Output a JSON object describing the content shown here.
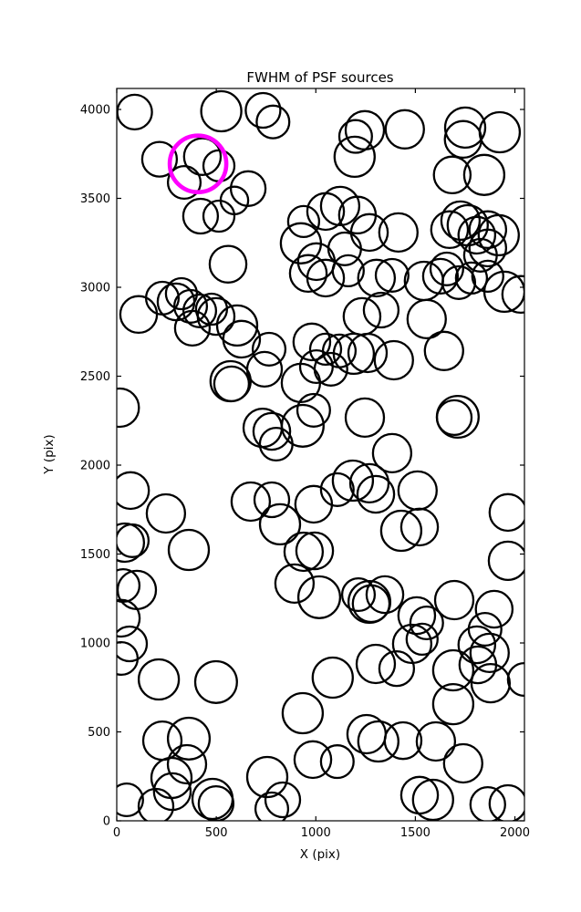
{
  "figure": {
    "background": "#ffffff",
    "title": "FWHM of PSF sources",
    "xlabel": "X (pix)",
    "ylabel": "Y (pix)"
  },
  "colors": {
    "circle_edge": "#000000",
    "highlight_edge": "#ff00ff",
    "axis": "#000000",
    "background": "#ffffff"
  },
  "chart_data": {
    "type": "scatter",
    "title": "FWHM of PSF sources",
    "xlabel": "X (pix)",
    "ylabel": "Y (pix)",
    "xlim": [
      0,
      2048
    ],
    "ylim": [
      0,
      4118
    ],
    "xticks": [
      0,
      500,
      1000,
      1500,
      2000
    ],
    "yticks": [
      0,
      500,
      1000,
      1500,
      2000,
      2500,
      3000,
      3500,
      4000
    ],
    "grid": false,
    "legend": null,
    "marker": "open-circle",
    "note": "each circle marks a PSF source; radius proportional to FWHM; one magenta highlighted source",
    "highlight_circle": {
      "x": 408,
      "y": 3694,
      "r": 142,
      "color": "#ff00ff"
    },
    "circles": [
      [
        90,
        3985,
        87
      ],
      [
        525,
        3990,
        101
      ],
      [
        735,
        3995,
        87
      ],
      [
        785,
        3930,
        82
      ],
      [
        430,
        3735,
        92
      ],
      [
        215,
        3720,
        87
      ],
      [
        513,
        3683,
        78
      ],
      [
        339,
        3590,
        82
      ],
      [
        421,
        3400,
        87
      ],
      [
        513,
        3400,
        78
      ],
      [
        591,
        3488,
        69
      ],
      [
        660,
        3555,
        87
      ],
      [
        559,
        3130,
        92
      ],
      [
        939,
        3370,
        78
      ],
      [
        1049,
        3426,
        92
      ],
      [
        1122,
        3457,
        96
      ],
      [
        925,
        3247,
        101
      ],
      [
        1003,
        3144,
        92
      ],
      [
        962,
        3078,
        92
      ],
      [
        1049,
        3052,
        92
      ],
      [
        1145,
        3216,
        82
      ],
      [
        1163,
        3093,
        78
      ],
      [
        1246,
        3883,
        96
      ],
      [
        1200,
        3848,
        82
      ],
      [
        1195,
        3734,
        101
      ],
      [
        1447,
        3888,
        96
      ],
      [
        1750,
        3898,
        101
      ],
      [
        1740,
        3832,
        92
      ],
      [
        1924,
        3872,
        101
      ],
      [
        1685,
        3632,
        92
      ],
      [
        1846,
        3632,
        101
      ],
      [
        1209,
        3406,
        92
      ],
      [
        1269,
        3308,
        92
      ],
      [
        1415,
        3308,
        96
      ],
      [
        1672,
        3324,
        92
      ],
      [
        1727,
        3375,
        96
      ],
      [
        1763,
        3349,
        101
      ],
      [
        1809,
        3293,
        92
      ],
      [
        1864,
        3324,
        92
      ],
      [
        1919,
        3293,
        101
      ],
      [
        1864,
        3221,
        92
      ],
      [
        1827,
        3180,
        82
      ],
      [
        1658,
        3103,
        82
      ],
      [
        1305,
        3052,
        92
      ],
      [
        1383,
        3067,
        82
      ],
      [
        1543,
        3036,
        96
      ],
      [
        1626,
        3062,
        87
      ],
      [
        1718,
        3026,
        82
      ],
      [
        1782,
        3052,
        78
      ],
      [
        1864,
        3062,
        78
      ],
      [
        1947,
        2975,
        101
      ],
      [
        2029,
        2960,
        92
      ],
      [
        1557,
        2821,
        96
      ],
      [
        1232,
        2836,
        92
      ],
      [
        1328,
        2872,
        87
      ],
      [
        1191,
        2626,
        101
      ],
      [
        1260,
        2631,
        96
      ],
      [
        1118,
        2642,
        82
      ],
      [
        1049,
        2652,
        78
      ],
      [
        1076,
        2539,
        82
      ],
      [
        1392,
        2590,
        96
      ],
      [
        1644,
        2642,
        96
      ],
      [
        1246,
        2267,
        96
      ],
      [
        1713,
        2272,
        105
      ],
      [
        1695,
        2267,
        87
      ],
      [
        1383,
        2067,
        96
      ],
      [
        989,
        2308,
        82
      ],
      [
        110,
        2847,
        92
      ],
      [
        229,
        2939,
        82
      ],
      [
        298,
        2918,
        92
      ],
      [
        325,
        2964,
        78
      ],
      [
        371,
        2893,
        82
      ],
      [
        417,
        2867,
        82
      ],
      [
        380,
        2770,
        87
      ],
      [
        476,
        2877,
        78
      ],
      [
        499,
        2836,
        92
      ],
      [
        605,
        2785,
        101
      ],
      [
        627,
        2708,
        92
      ],
      [
        765,
        2652,
        82
      ],
      [
        742,
        2539,
        87
      ],
      [
        572,
        2472,
        101
      ],
      [
        577,
        2457,
        87
      ],
      [
        15,
        2323,
        96
      ],
      [
        980,
        2693,
        92
      ],
      [
        1003,
        2554,
        82
      ],
      [
        733,
        2210,
        96
      ],
      [
        779,
        2190,
        92
      ],
      [
        925,
        2462,
        96
      ],
      [
        934,
        2221,
        105
      ],
      [
        801,
        2118,
        82
      ],
      [
        69,
        1857,
        92
      ],
      [
        247,
        1728,
        96
      ],
      [
        362,
        1523,
        101
      ],
      [
        41,
        1564,
        96
      ],
      [
        78,
        1575,
        82
      ],
      [
        101,
        1298,
        96
      ],
      [
        32,
        1323,
        82
      ],
      [
        23,
        1139,
        92
      ],
      [
        673,
        1795,
        96
      ],
      [
        779,
        1805,
        87
      ],
      [
        820,
        1667,
        101
      ],
      [
        939,
        1513,
        96
      ],
      [
        994,
        1518,
        92
      ],
      [
        893,
        1334,
        96
      ],
      [
        1017,
        1257,
        105
      ],
      [
        1186,
        1913,
        101
      ],
      [
        1269,
        1898,
        96
      ],
      [
        1301,
        1836,
        92
      ],
      [
        1108,
        1862,
        82
      ],
      [
        989,
        1780,
        92
      ],
      [
        1511,
        1857,
        96
      ],
      [
        1429,
        1631,
        101
      ],
      [
        1521,
        1652,
        92
      ],
      [
        1269,
        1231,
        105
      ],
      [
        1278,
        1221,
        92
      ],
      [
        1347,
        1272,
        92
      ],
      [
        1214,
        1272,
        82
      ],
      [
        1507,
        1154,
        92
      ],
      [
        1557,
        1113,
        82
      ],
      [
        1695,
        1241,
        96
      ],
      [
        1896,
        1190,
        92
      ],
      [
        1850,
        1077,
        82
      ],
      [
        1965,
        1734,
        92
      ],
      [
        1965,
        1462,
        96
      ],
      [
        64,
        995,
        87
      ],
      [
        23,
        913,
        82
      ],
      [
        211,
        795,
        101
      ],
      [
        499,
        780,
        105
      ],
      [
        229,
        451,
        96
      ],
      [
        362,
        462,
        105
      ],
      [
        353,
        318,
        96
      ],
      [
        275,
        241,
        101
      ],
      [
        279,
        164,
        92
      ],
      [
        50,
        118,
        82
      ],
      [
        197,
        82,
        87
      ],
      [
        481,
        123,
        101
      ],
      [
        499,
        97,
        87
      ],
      [
        756,
        246,
        101
      ],
      [
        834,
        118,
        87
      ],
      [
        779,
        67,
        82
      ],
      [
        934,
        605,
        101
      ],
      [
        985,
        344,
        92
      ],
      [
        1085,
        805,
        101
      ],
      [
        1301,
        882,
        96
      ],
      [
        1406,
        856,
        87
      ],
      [
        1484,
        995,
        96
      ],
      [
        1534,
        1021,
        78
      ],
      [
        1809,
        990,
        92
      ],
      [
        1873,
        944,
        96
      ],
      [
        1814,
        877,
        92
      ],
      [
        1878,
        774,
        96
      ],
      [
        1690,
        846,
        101
      ],
      [
        1690,
        656,
        101
      ],
      [
        1255,
        487,
        96
      ],
      [
        1314,
        446,
        101
      ],
      [
        1438,
        451,
        92
      ],
      [
        1603,
        446,
        96
      ],
      [
        1740,
        323,
        96
      ],
      [
        1108,
        333,
        82
      ],
      [
        1521,
        144,
        92
      ],
      [
        1589,
        118,
        101
      ],
      [
        1864,
        92,
        87
      ],
      [
        1965,
        97,
        92
      ],
      [
        2047,
        795,
        82
      ]
    ]
  }
}
